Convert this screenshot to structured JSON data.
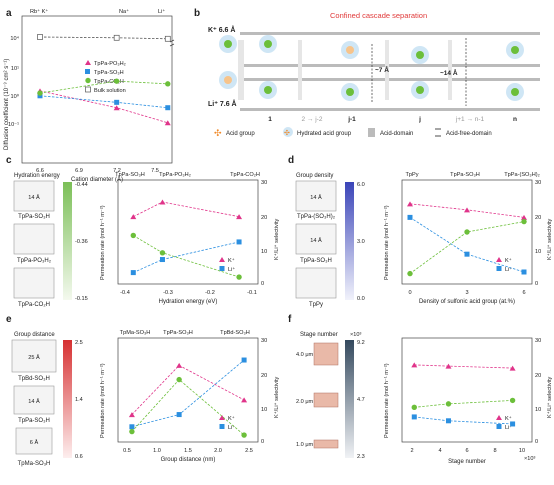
{
  "panels": {
    "a": {
      "letter": "a",
      "ion_labels": [
        "Rb⁺ K⁺",
        "Na⁺",
        "Li⁺"
      ],
      "ylabel": "Diffusion coefficient (10⁻⁹ cm² s⁻¹)",
      "xlabel": "Cation diameter (Å)",
      "xticks": [
        "6.6",
        "6.9",
        "7.2",
        "7.5"
      ],
      "yticks": [
        "10⁴",
        "10¹",
        "10⁰",
        "10⁻¹"
      ],
      "legend": [
        "TpPa-PO₃H₂",
        "TpPa-SO₃H",
        "TpPa-CO₂H",
        "Bulk solution"
      ]
    },
    "b": {
      "letter": "b",
      "title": "Confined cascade separation",
      "k_label": "K⁺ 6.6 Å",
      "li_label": "Li⁺ 7.6 Å",
      "dist1": "~7 Å",
      "dist2": "~14 Å",
      "stages": [
        "1",
        "2 → j-2",
        "j-1",
        "j",
        "j+1 → n-1",
        "n"
      ],
      "legend": [
        "Acid group",
        "Hydrated acid group",
        "Acid-domain",
        "Acid-free-domain"
      ]
    },
    "c": {
      "letter": "c",
      "heading": "Hydration energy",
      "pore": "14 Å",
      "labels": [
        "TpPa-SO₃H",
        "TpPa-PO₃H₂",
        "TpPa-CO₂H"
      ],
      "bar_ticks": [
        "-0.44",
        "-0.36",
        "-0.15"
      ],
      "top_labels": [
        "TpPa-SO₃H",
        "TpPa-PO₃H₂",
        "TpPa-CO₂H"
      ],
      "xlabel": "Hydration energy (eV)",
      "xticks": [
        "-0.4",
        "-0.3",
        "-0.2",
        "-0.1"
      ],
      "ylabel": "Permeation rate (mol h⁻¹ m⁻²)",
      "y2label": "K⁺/Li⁺ selectivity",
      "y2ticks": [
        "30",
        "20",
        "10",
        "0"
      ],
      "legend": [
        "K⁺",
        "Li⁺"
      ]
    },
    "d": {
      "letter": "d",
      "heading": "Group density",
      "pore": "14 Å",
      "labels": [
        "TpPa-(SO₃H)₂",
        "TpPa-SO₃H",
        "TpPy"
      ],
      "bar_ticks": [
        "6.0",
        "3.0",
        "0.0"
      ],
      "top_labels": [
        "TpPy",
        "TpPa-SO₃H",
        "TpPa-(SO₃H)₂"
      ],
      "xlabel": "Density of sulfonic acid group (at.%)",
      "xticks": [
        "0",
        "3",
        "6"
      ],
      "ylabel": "Permeation rate (mol h⁻¹ m⁻²)",
      "y2label": "K⁺/Li⁺ selectivity",
      "y2ticks": [
        "30",
        "20",
        "10",
        "0"
      ],
      "legend": [
        "K⁺",
        "Li⁺"
      ]
    },
    "e": {
      "letter": "e",
      "heading": "Group distance",
      "pores": [
        "25 Å",
        "14 Å",
        "6 Å"
      ],
      "labels": [
        "TpBd-SO₃H",
        "TpPa-SO₃H",
        "TpMa-SO₃H"
      ],
      "bar_ticks": [
        "2.5",
        "1.4",
        "0.6"
      ],
      "top_labels": [
        "TpMa-SO₃H",
        "TpPa-SO₃H",
        "TpBd-SO₃H"
      ],
      "xlabel": "Group distance (nm)",
      "xticks": [
        "0.5",
        "1.0",
        "1.5",
        "2.0",
        "2.5"
      ],
      "ylabel": "Permeation rate (mol h⁻¹ m⁻²)",
      "y2label": "K⁺/Li⁺ selectivity",
      "y2ticks": [
        "30",
        "20",
        "10",
        "0"
      ],
      "legend": [
        "K⁺",
        "Li⁺"
      ]
    },
    "f": {
      "letter": "f",
      "heading": "Stage number",
      "multiplier": "×10³",
      "thickness": [
        "4.0 μm",
        "2.0 μm",
        "1.0 μm"
      ],
      "bar_ticks": [
        "9.2",
        "4.7",
        "2.3"
      ],
      "xlabel": "Stage number",
      "xmult": "×10³",
      "xticks": [
        "2",
        "4",
        "6",
        "8",
        "10"
      ],
      "ylabel": "Permeation rate (mol h⁻¹ m⁻²)",
      "y2label": "K⁺/Li⁺ selectivity",
      "y2ticks": [
        "30",
        "20",
        "10",
        "0"
      ],
      "legend": [
        "K⁺",
        "Li⁺"
      ]
    }
  },
  "chart_data": [
    {
      "panel": "a",
      "type": "scatter",
      "xlabel": "Cation diameter (Å)",
      "ylabel": "Diffusion coefficient (10⁻⁹ cm² s⁻¹)",
      "ylog": true,
      "x": [
        6.6,
        7.2,
        7.6
      ],
      "series": [
        {
          "name": "TpPa-PO₃H₂",
          "values": [
            1.8,
            0.45,
            0.13
          ]
        },
        {
          "name": "TpPa-SO₃H",
          "values": [
            1.2,
            0.7,
            0.45
          ]
        },
        {
          "name": "TpPa-CO₂H",
          "values": [
            1.5,
            4.0,
            3.2
          ]
        },
        {
          "name": "Bulk solution",
          "values": [
            20000,
            16000,
            12000
          ]
        }
      ]
    },
    {
      "panel": "c",
      "type": "line",
      "x": [
        -0.44,
        -0.36,
        -0.15
      ],
      "series": [
        {
          "name": "K⁺",
          "values": [
            0.1,
            0.3,
            0.1
          ]
        },
        {
          "name": "Li⁺",
          "values": [
            0.0015,
            0.004,
            0.015
          ]
        },
        {
          "name": "selectivity",
          "values": [
            14,
            9,
            2
          ]
        }
      ]
    },
    {
      "panel": "d",
      "type": "line",
      "x": [
        0,
        3,
        6
      ],
      "series": [
        {
          "name": "K⁺",
          "values": [
            0.3,
            0.2,
            0.12
          ]
        },
        {
          "name": "Li⁺",
          "values": [
            0.12,
            0.01,
            0.003
          ]
        },
        {
          "name": "selectivity",
          "values": [
            3,
            15,
            18
          ]
        }
      ]
    },
    {
      "panel": "e",
      "type": "line",
      "x": [
        0.6,
        1.4,
        2.5
      ],
      "series": [
        {
          "name": "K⁺",
          "values": [
            0.005,
            0.2,
            0.015
          ]
        },
        {
          "name": "Li⁺",
          "values": [
            0.002,
            0.005,
            0.3
          ]
        },
        {
          "name": "selectivity",
          "values": [
            3,
            18,
            2
          ]
        }
      ]
    },
    {
      "panel": "f",
      "type": "line",
      "x": [
        2.3,
        4.7,
        9.2
      ],
      "series": [
        {
          "name": "K⁺",
          "values": [
            0.3,
            0.28,
            0.25
          ]
        },
        {
          "name": "Li⁺",
          "values": [
            0.015,
            0.012,
            0.01
          ]
        },
        {
          "name": "selectivity",
          "values": [
            10,
            11,
            12
          ]
        }
      ]
    }
  ]
}
